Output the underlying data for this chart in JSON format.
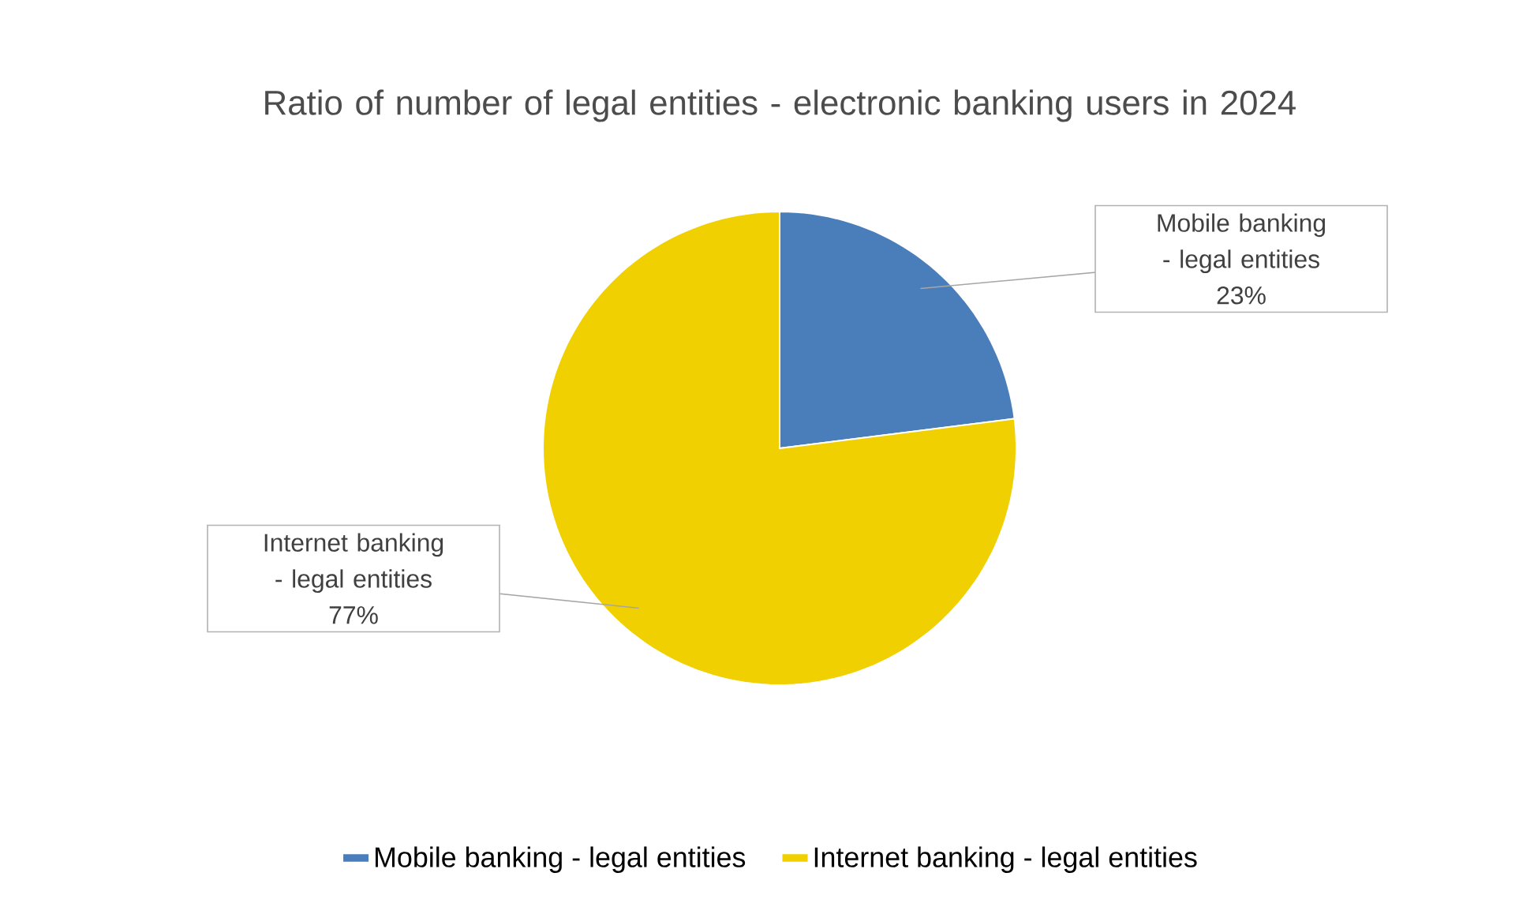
{
  "chart_data": {
    "type": "pie",
    "title": "Ratio of number of legal entities - electronic banking users in 2024",
    "categories": [
      "Mobile banking - legal entities",
      "Internet banking - legal entities"
    ],
    "values": [
      23,
      77
    ],
    "value_labels": [
      "23%",
      "77%"
    ],
    "colors": [
      "#4a7ebb",
      "#f0d000"
    ],
    "legend": "bottom"
  }
}
